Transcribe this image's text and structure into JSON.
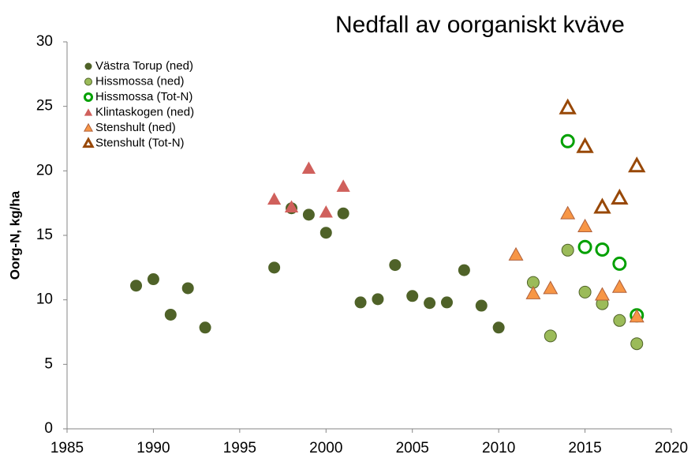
{
  "chart_data": {
    "type": "scatter",
    "title": "Nedfall av oorganiskt kväve",
    "y_label": "Oorg-N, kg/ha",
    "xlim": [
      1985,
      2020
    ],
    "xticks": [
      1985,
      1990,
      1995,
      2000,
      2005,
      2010,
      2015,
      2020
    ],
    "ylim": [
      0,
      30
    ],
    "yticks": [
      0,
      5,
      10,
      15,
      20,
      25,
      30
    ],
    "grid": false,
    "legend": "upper left",
    "series": [
      {
        "name": "Västra Torup (ned)",
        "color": "#4f6228",
        "marker": "circle",
        "hollow": false,
        "x": [
          1989,
          1990,
          1991,
          1992,
          1993,
          1997,
          1998,
          1999,
          2000,
          2001,
          2002,
          2003,
          2004,
          2005,
          2006,
          2007,
          2008,
          2009,
          2010
        ],
        "values": [
          11.1,
          11.6,
          8.85,
          10.9,
          7.85,
          12.5,
          17.1,
          16.6,
          15.2,
          16.7,
          9.8,
          10.05,
          12.7,
          10.3,
          9.75,
          9.8,
          12.3,
          9.55,
          7.85
        ]
      },
      {
        "name": "Hissmossa (ned)",
        "color": "#9bbb59",
        "marker": "circle",
        "hollow": false,
        "x": [
          2012,
          2013,
          2014,
          2015,
          2016,
          2017,
          2018
        ],
        "values": [
          11.35,
          7.2,
          13.85,
          10.6,
          9.7,
          8.4,
          6.6
        ]
      },
      {
        "name": "Hissmossa (Tot-N)",
        "color": "#00a000",
        "marker": "circle",
        "hollow": true,
        "x": [
          2014,
          2015,
          2016,
          2017,
          2018
        ],
        "values": [
          22.3,
          14.1,
          13.9,
          12.8,
          8.8
        ]
      },
      {
        "name": "Klintaskogen (ned)",
        "color": "#d0605c",
        "marker": "triangle",
        "hollow": false,
        "x": [
          1997,
          1998,
          1999,
          2000,
          2001
        ],
        "values": [
          17.8,
          17.2,
          20.2,
          16.8,
          18.8
        ]
      },
      {
        "name": "Stenshult (ned)",
        "color": "#f79646",
        "marker": "triangle",
        "hollow": false,
        "x": [
          2011,
          2012,
          2013,
          2014,
          2015,
          2016,
          2017,
          2018
        ],
        "values": [
          13.5,
          10.5,
          10.9,
          16.7,
          15.7,
          10.4,
          11.0,
          8.7
        ]
      },
      {
        "name": "Stenshult (Tot-N)",
        "color": "#984807",
        "marker": "triangle",
        "hollow": true,
        "x": [
          2014,
          2015,
          2016,
          2017,
          2018
        ],
        "values": [
          24.9,
          21.9,
          17.2,
          17.9,
          20.4
        ]
      }
    ]
  }
}
